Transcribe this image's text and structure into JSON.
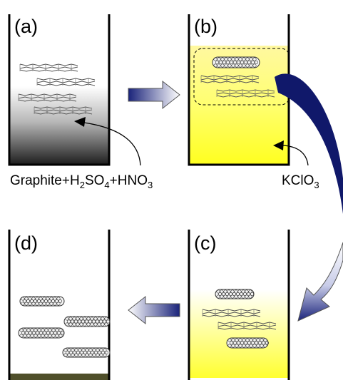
{
  "panels": {
    "a": {
      "label": "(a)"
    },
    "b": {
      "label": "(b)"
    },
    "c": {
      "label": "(c)"
    },
    "d": {
      "label": "(d)"
    }
  },
  "reagents": {
    "mixture": {
      "graphite": "Graphite",
      "plus1": "+",
      "h2": "H",
      "h2_sub": "2",
      "so4": "SO",
      "so4_sub": "4",
      "plus2": "+",
      "hno": "HNO",
      "hno_sub": "3"
    },
    "oxidant": {
      "kclo": "KClO",
      "kclo_sub": "3"
    }
  },
  "colors": {
    "yellow": "#ffff3a",
    "dark_gray": "#2a2a2a",
    "navy": "#10186a",
    "olive": "#4f4f2a"
  }
}
